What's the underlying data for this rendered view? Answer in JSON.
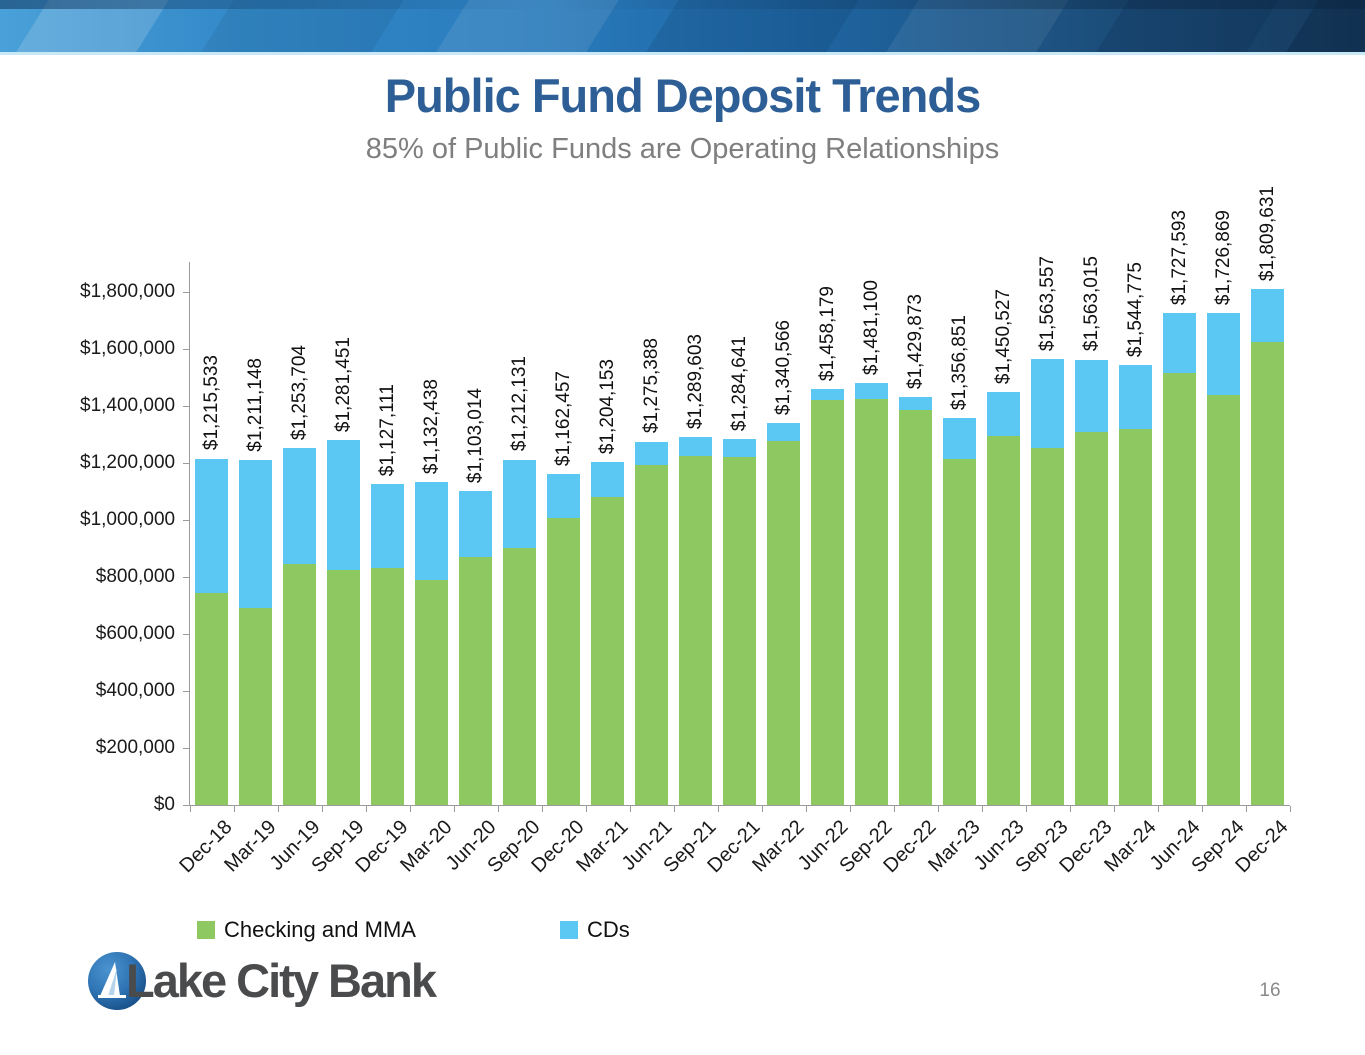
{
  "title": "Public Fund Deposit Trends",
  "subtitle": "85% of Public Funds are Operating Relationships",
  "page_number": "16",
  "logo": {
    "text": "Lake City Bank"
  },
  "legend": [
    {
      "label": "Checking and MMA",
      "color": "#8ec861"
    },
    {
      "label": "CDs",
      "color": "#5bc8f4"
    }
  ],
  "colors": {
    "checking_green": "#8ec861",
    "cds_blue": "#5bc8f4",
    "title_blue": "#2d5f96",
    "subtitle_gray": "#7f7f7f",
    "axis_gray": "#9b9b9b"
  },
  "chart_data": {
    "type": "bar",
    "stacked": true,
    "grid": false,
    "legend_position": "bottom",
    "categories": [
      "Dec-18",
      "Mar-19",
      "Jun-19",
      "Sep-19",
      "Dec-19",
      "Mar-20",
      "Jun-20",
      "Sep-20",
      "Dec-20",
      "Mar-21",
      "Jun-21",
      "Sep-21",
      "Dec-21",
      "Mar-22",
      "Jun-22",
      "Sep-22",
      "Dec-22",
      "Mar-23",
      "Jun-23",
      "Sep-23",
      "Dec-23",
      "Mar-24",
      "Jun-24",
      "Sep-24",
      "Dec-24"
    ],
    "series": [
      {
        "name": "Checking and MMA",
        "color": "#8ec861",
        "values": [
          744000,
          692000,
          846000,
          825000,
          833000,
          790000,
          869000,
          903000,
          1008000,
          1082000,
          1193000,
          1225000,
          1220000,
          1278000,
          1421000,
          1424000,
          1386000,
          1213000,
          1296000,
          1254000,
          1308000,
          1319000,
          1515000,
          1439000,
          1626000
        ]
      },
      {
        "name": "CDs",
        "color": "#5bc8f4",
        "values": [
          471533,
          519148,
          407704,
          456451,
          294111,
          342438,
          234014,
          309131,
          154457,
          122153,
          82388,
          64603,
          64641,
          62566,
          37179,
          57100,
          43873,
          143851,
          154527,
          309557,
          255015,
          225775,
          212593,
          287869,
          183631
        ]
      }
    ],
    "totals": [
      1215533,
      1211148,
      1253704,
      1281451,
      1127111,
      1132438,
      1103014,
      1212131,
      1162457,
      1204153,
      1275388,
      1289603,
      1284641,
      1340566,
      1458179,
      1481100,
      1429873,
      1356851,
      1450527,
      1563557,
      1563015,
      1544775,
      1727593,
      1726869,
      1809631
    ],
    "total_labels": [
      "$1,215,533",
      "$1,211,148",
      "$1,253,704",
      "$1,281,451",
      "$1,127,111",
      "$1,132,438",
      "$1,103,014",
      "$1,212,131",
      "$1,162,457",
      "$1,204,153",
      "$1,275,388",
      "$1,289,603",
      "$1,284,641",
      "$1,340,566",
      "$1,458,179",
      "$1,481,100",
      "$1,429,873",
      "$1,356,851",
      "$1,450,527",
      "$1,563,557",
      "$1,563,015",
      "$1,544,775",
      "$1,727,593",
      "$1,726,869",
      "$1,809,631"
    ],
    "y_axis": {
      "min": 0,
      "max": 1800000,
      "step": 200000,
      "tick_labels": [
        "$0",
        "$200,000",
        "$400,000",
        "$600,000",
        "$800,000",
        "$1,000,000",
        "$1,200,000",
        "$1,400,000",
        "$1,600,000",
        "$1,800,000"
      ]
    },
    "xlabel": "",
    "ylabel": ""
  }
}
